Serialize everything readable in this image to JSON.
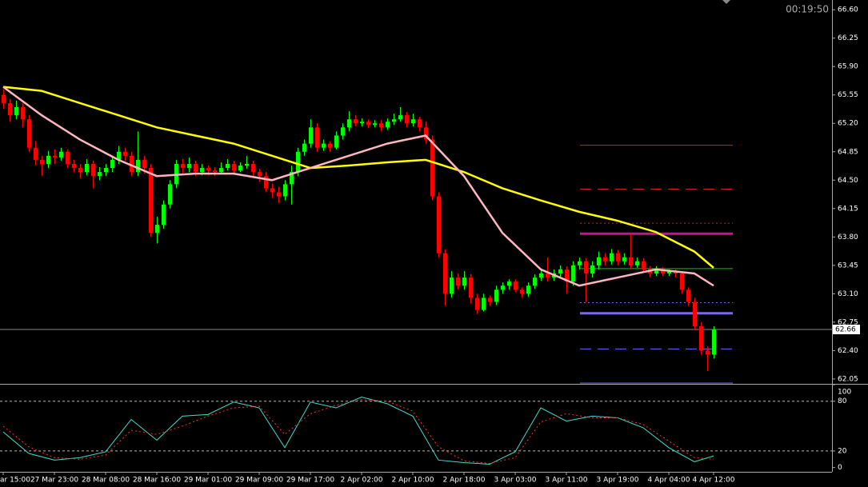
{
  "chart_data": {
    "type": "candlestick",
    "timer": "00:19:50",
    "bull_color": "#00ff00",
    "bear_color": "#ff0000",
    "xlim": [
      -0.5,
      129.5
    ],
    "xticks": [
      {
        "value": 0,
        "label": "ar 15:00"
      },
      {
        "value": 8,
        "label": "27 Mar 23:00"
      },
      {
        "value": 16,
        "label": "28 Mar 08:00"
      },
      {
        "value": 24,
        "label": "28 Mar 16:00"
      },
      {
        "value": 32,
        "label": "29 Mar 01:00"
      },
      {
        "value": 40,
        "label": "29 Mar 09:00"
      },
      {
        "value": 48,
        "label": "29 Mar 17:00"
      },
      {
        "value": 56,
        "label": "2 Apr 02:00"
      },
      {
        "value": 64,
        "label": "2 Apr 10:00"
      },
      {
        "value": 72,
        "label": "2 Apr 18:00"
      },
      {
        "value": 80,
        "label": "3 Apr 03:00"
      },
      {
        "value": 88,
        "label": "3 Apr 11:00"
      },
      {
        "value": 96,
        "label": "3 Apr 19:00"
      },
      {
        "value": 104,
        "label": "4 Apr 04:00"
      },
      {
        "value": 111,
        "label": "4 Apr 12:00"
      }
    ],
    "ylim": [
      61.99,
      66.72
    ],
    "yticks": [
      {
        "value": 66.6,
        "label": "66.60"
      },
      66.25,
      {
        "value": 65.9,
        "label": "65.90"
      },
      65.55,
      {
        "value": 65.2,
        "label": "65.20"
      },
      64.85,
      {
        "value": 64.5,
        "label": "64.50"
      },
      64.15,
      {
        "value": 63.8,
        "label": "63.80"
      },
      63.45,
      {
        "value": 63.1,
        "label": "63.10"
      },
      62.75,
      {
        "value": 62.4,
        "label": "62.40"
      },
      62.05
    ],
    "last_price": 62.66,
    "candles": [
      [
        65.55,
        65.62,
        65.38,
        65.45
      ],
      [
        65.45,
        65.5,
        65.22,
        65.3
      ],
      [
        65.3,
        65.48,
        65.25,
        65.4
      ],
      [
        65.4,
        65.45,
        65.15,
        65.25
      ],
      [
        65.25,
        65.3,
        64.85,
        64.9
      ],
      [
        64.9,
        64.98,
        64.68,
        64.75
      ],
      [
        64.75,
        64.8,
        64.55,
        64.7
      ],
      [
        64.7,
        64.86,
        64.65,
        64.8
      ],
      [
        64.8,
        64.88,
        64.7,
        64.78
      ],
      [
        64.78,
        64.9,
        64.74,
        64.85
      ],
      [
        64.85,
        64.88,
        64.65,
        64.7
      ],
      [
        64.7,
        64.75,
        64.6,
        64.65
      ],
      [
        64.65,
        64.7,
        64.52,
        64.6
      ],
      [
        64.6,
        64.76,
        64.56,
        64.7
      ],
      [
        64.7,
        64.74,
        64.4,
        64.55
      ],
      [
        64.55,
        64.66,
        64.5,
        64.6
      ],
      [
        64.6,
        64.7,
        64.55,
        64.65
      ],
      [
        64.65,
        64.8,
        64.6,
        64.75
      ],
      [
        64.75,
        64.92,
        64.7,
        64.85
      ],
      [
        64.85,
        64.9,
        64.74,
        64.8
      ],
      [
        64.8,
        64.85,
        64.55,
        64.6
      ],
      [
        64.6,
        65.1,
        64.55,
        64.75
      ],
      [
        64.75,
        64.8,
        64.58,
        64.65
      ],
      [
        64.65,
        64.7,
        63.8,
        63.85
      ],
      [
        63.85,
        64.05,
        63.72,
        63.95
      ],
      [
        63.95,
        64.25,
        63.9,
        64.2
      ],
      [
        64.2,
        64.5,
        64.15,
        64.45
      ],
      [
        64.45,
        64.75,
        64.4,
        64.7
      ],
      [
        64.7,
        64.76,
        64.58,
        64.65
      ],
      [
        64.65,
        64.78,
        64.6,
        64.7
      ],
      [
        64.7,
        64.74,
        64.55,
        64.6
      ],
      [
        64.6,
        64.7,
        64.56,
        64.65
      ],
      [
        64.65,
        64.68,
        64.56,
        64.62
      ],
      [
        64.62,
        64.66,
        64.55,
        64.6
      ],
      [
        64.6,
        64.72,
        64.57,
        64.65
      ],
      [
        64.65,
        64.76,
        64.62,
        64.7
      ],
      [
        64.7,
        64.74,
        64.58,
        64.62
      ],
      [
        64.62,
        64.72,
        64.6,
        64.68
      ],
      [
        64.68,
        64.8,
        64.64,
        64.7
      ],
      [
        64.7,
        64.74,
        64.55,
        64.6
      ],
      [
        64.6,
        64.64,
        64.48,
        64.55
      ],
      [
        64.55,
        64.6,
        64.35,
        64.4
      ],
      [
        64.4,
        64.46,
        64.28,
        64.35
      ],
      [
        64.35,
        64.42,
        64.22,
        64.3
      ],
      [
        64.3,
        64.5,
        64.25,
        64.45
      ],
      [
        64.45,
        64.68,
        64.2,
        64.6
      ],
      [
        64.6,
        64.9,
        64.55,
        64.85
      ],
      [
        64.85,
        65.0,
        64.8,
        64.95
      ],
      [
        64.95,
        65.25,
        64.9,
        65.15
      ],
      [
        65.15,
        65.2,
        64.85,
        64.9
      ],
      [
        64.9,
        65.0,
        64.86,
        64.95
      ],
      [
        64.95,
        64.98,
        64.85,
        64.9
      ],
      [
        64.9,
        65.1,
        64.88,
        65.05
      ],
      [
        65.05,
        65.2,
        65.0,
        65.15
      ],
      [
        65.15,
        65.35,
        65.1,
        65.25
      ],
      [
        65.25,
        65.3,
        65.16,
        65.2
      ],
      [
        65.2,
        65.26,
        65.16,
        65.22
      ],
      [
        65.22,
        65.25,
        65.14,
        65.18
      ],
      [
        65.18,
        65.24,
        65.15,
        65.2
      ],
      [
        65.2,
        65.24,
        65.1,
        65.15
      ],
      [
        65.15,
        65.26,
        65.12,
        65.22
      ],
      [
        65.22,
        65.32,
        65.18,
        65.25
      ],
      [
        65.25,
        65.4,
        65.22,
        65.3
      ],
      [
        65.3,
        65.34,
        65.15,
        65.2
      ],
      [
        65.2,
        65.32,
        65.16,
        65.25
      ],
      [
        65.25,
        65.28,
        65.1,
        65.15
      ],
      [
        65.15,
        65.22,
        64.95,
        65.0
      ],
      [
        65.0,
        65.05,
        64.25,
        64.3
      ],
      [
        64.3,
        64.35,
        63.55,
        63.6
      ],
      [
        63.6,
        63.65,
        62.95,
        63.1
      ],
      [
        63.1,
        63.38,
        63.05,
        63.3
      ],
      [
        63.3,
        63.35,
        63.15,
        63.2
      ],
      [
        63.2,
        63.38,
        63.15,
        63.3
      ],
      [
        63.3,
        63.34,
        62.98,
        63.05
      ],
      [
        63.05,
        63.1,
        62.85,
        62.9
      ],
      [
        62.9,
        63.1,
        62.88,
        63.05
      ],
      [
        63.05,
        63.08,
        62.95,
        63.0
      ],
      [
        63.0,
        63.2,
        62.96,
        63.15
      ],
      [
        63.15,
        63.24,
        63.1,
        63.2
      ],
      [
        63.2,
        63.28,
        63.15,
        63.25
      ],
      [
        63.25,
        63.28,
        63.12,
        63.15
      ],
      [
        63.15,
        63.18,
        63.05,
        63.1
      ],
      [
        63.1,
        63.24,
        63.06,
        63.2
      ],
      [
        63.2,
        63.34,
        63.16,
        63.3
      ],
      [
        63.3,
        63.4,
        63.26,
        63.35
      ],
      [
        63.35,
        63.55,
        63.25,
        63.3
      ],
      [
        63.3,
        63.4,
        63.26,
        63.35
      ],
      [
        63.35,
        63.45,
        63.3,
        63.4
      ],
      [
        63.4,
        63.44,
        63.1,
        63.25
      ],
      [
        63.25,
        63.5,
        63.2,
        63.45
      ],
      [
        63.45,
        63.55,
        63.4,
        63.5
      ],
      [
        63.5,
        63.54,
        63.0,
        63.35
      ],
      [
        63.35,
        63.5,
        63.3,
        63.45
      ],
      [
        63.45,
        63.62,
        63.4,
        63.55
      ],
      [
        63.55,
        63.6,
        63.45,
        63.5
      ],
      [
        63.5,
        63.65,
        63.46,
        63.6
      ],
      [
        63.6,
        63.64,
        63.45,
        63.5
      ],
      [
        63.5,
        63.6,
        63.46,
        63.55
      ],
      [
        63.55,
        63.85,
        63.4,
        63.45
      ],
      [
        63.45,
        63.55,
        63.42,
        63.5
      ],
      [
        63.5,
        63.54,
        63.36,
        63.4
      ],
      [
        63.4,
        63.44,
        63.3,
        63.35
      ],
      [
        63.35,
        63.44,
        63.32,
        63.4
      ],
      [
        63.4,
        63.43,
        63.32,
        63.35
      ],
      [
        63.35,
        63.4,
        63.32,
        63.38
      ],
      [
        63.38,
        63.4,
        63.3,
        63.35
      ],
      [
        63.35,
        63.38,
        63.1,
        63.15
      ],
      [
        63.15,
        63.18,
        62.95,
        63.0
      ],
      [
        63.0,
        63.05,
        62.65,
        62.7
      ],
      [
        62.7,
        62.75,
        62.35,
        62.4
      ],
      [
        62.4,
        62.45,
        62.15,
        62.35
      ],
      [
        62.35,
        62.7,
        62.3,
        62.66
      ]
    ],
    "lines": [
      {
        "color": "#ffff00",
        "x": [
          0,
          6,
          12,
          18,
          24,
          30,
          36,
          42,
          48,
          54,
          60,
          66,
          72,
          78,
          84,
          90,
          96,
          102,
          108,
          111
        ],
        "values": [
          65.65,
          65.6,
          65.45,
          65.3,
          65.15,
          65.05,
          64.95,
          64.8,
          64.65,
          64.68,
          64.72,
          64.75,
          64.6,
          64.4,
          64.25,
          64.11,
          64.0,
          63.86,
          63.62,
          63.42
        ]
      },
      {
        "color": "#ffb6c1",
        "x": [
          0,
          6,
          12,
          18,
          24,
          30,
          36,
          42,
          48,
          54,
          60,
          66,
          72,
          78,
          84,
          90,
          96,
          102,
          108,
          111
        ],
        "values": [
          65.65,
          65.3,
          65.0,
          64.75,
          64.55,
          64.58,
          64.58,
          64.5,
          64.65,
          64.8,
          64.95,
          65.05,
          64.55,
          63.85,
          63.4,
          63.2,
          63.3,
          63.4,
          63.35,
          63.2
        ]
      }
    ],
    "levels": [
      {
        "value": 64.93,
        "color": "#cc2222",
        "style": "solid",
        "width": 1
      },
      {
        "value": 64.39,
        "color": "#cc2222",
        "style": "dashed",
        "width": 1
      },
      {
        "value": 63.97,
        "color": "#cc2222",
        "style": "dotted",
        "width": 1
      },
      {
        "value": 63.84,
        "color": "#c71585",
        "style": "solid",
        "width": 3
      },
      {
        "value": 63.41,
        "color": "#00cc00",
        "style": "solid",
        "width": 1
      },
      {
        "value": 62.99,
        "color": "#6a6aff",
        "style": "dotted",
        "width": 1
      },
      {
        "value": 62.86,
        "color": "#7b68ee",
        "style": "solid",
        "width": 3
      },
      {
        "value": 62.42,
        "color": "#6a6aff",
        "style": "dashed",
        "width": 1
      },
      {
        "value": 62.0,
        "color": "#6a6aff",
        "style": "solid",
        "width": 1
      }
    ],
    "oscillator": {
      "ylim": [
        -9,
        100
      ],
      "yticks": [
        100,
        80,
        20,
        0
      ],
      "levels": [
        80,
        20
      ],
      "series": [
        {
          "color": "#40e0d0",
          "style": "solid",
          "x": [
            0,
            4,
            8,
            12,
            16,
            20,
            24,
            28,
            32,
            36,
            40,
            44,
            48,
            52,
            56,
            60,
            64,
            68,
            72,
            76,
            80,
            84,
            88,
            92,
            96,
            100,
            104,
            108,
            111
          ],
          "values": [
            43,
            17,
            9,
            12,
            19,
            58,
            33,
            62,
            64,
            79,
            72,
            24,
            79,
            72,
            85,
            77,
            62,
            9,
            6,
            4,
            19,
            72,
            56,
            62,
            60,
            48,
            24,
            7,
            14
          ]
        },
        {
          "color": "#ff3030",
          "style": "dotted",
          "x": [
            0,
            4,
            8,
            12,
            16,
            20,
            24,
            28,
            32,
            36,
            40,
            44,
            48,
            52,
            56,
            60,
            64,
            68,
            72,
            76,
            80,
            84,
            88,
            92,
            96,
            100,
            104,
            108,
            111
          ],
          "values": [
            50,
            25,
            12,
            10,
            15,
            45,
            40,
            50,
            62,
            72,
            74,
            40,
            65,
            75,
            82,
            80,
            68,
            25,
            8,
            5,
            12,
            55,
            65,
            60,
            60,
            52,
            32,
            12,
            10
          ]
        }
      ]
    }
  }
}
